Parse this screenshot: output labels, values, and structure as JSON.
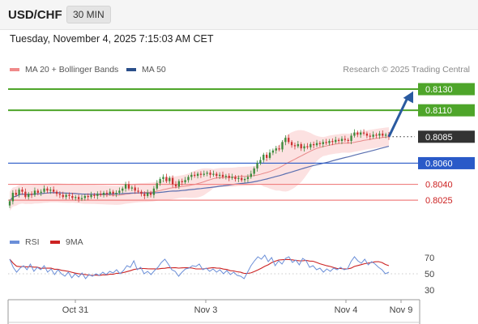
{
  "header": {
    "symbol": "USD/CHF",
    "timeframe": "30 MIN"
  },
  "datetime": "Tuesday, November 4, 2025 7:15:03 AM CET",
  "legend": {
    "ma20_label": "MA 20 + Bollinger Bands",
    "ma50_label": "MA 50",
    "credit": "Research © 2025 Trading Central"
  },
  "rsi_legend": {
    "rsi_label": "RSI",
    "ma_label": "9MA"
  },
  "colors": {
    "resistance": "#4ea52a",
    "support_blue": "#2a5ac8",
    "support_red": "#f08080",
    "label_red_text": "#cc2222",
    "current_box": "#333333",
    "candle_up": "#3c8a3c",
    "candle_down": "#cc3333",
    "ma50": "#5a6fb0",
    "ma20": "#e88a8a",
    "bb_fill": "#fbdcdc",
    "arrow": "#2a5aa0",
    "rsi_line": "#6b8fd8",
    "rsi_ma": "#cc2222"
  },
  "chart_data": [
    {
      "type": "candlestick",
      "ylim": [
        0.7996,
        0.814
      ],
      "levels": [
        {
          "value": 0.813,
          "label": "0.8130",
          "kind": "resistance",
          "style": "green-box"
        },
        {
          "value": 0.811,
          "label": "0.8110",
          "kind": "resistance",
          "style": "green-box"
        },
        {
          "value": 0.8085,
          "label": "0.8085",
          "kind": "current",
          "style": "dark-box"
        },
        {
          "value": 0.806,
          "label": "0.8060",
          "kind": "support",
          "style": "blue-box"
        },
        {
          "value": 0.804,
          "label": "0.8040",
          "kind": "support",
          "style": "red-text"
        },
        {
          "value": 0.8025,
          "label": "0.8025",
          "kind": "support",
          "style": "red-text"
        }
      ],
      "x_ticks": [
        "Oct 31",
        "Nov 3",
        "Nov 4",
        "Nov 9"
      ],
      "close": [
        0.8024,
        0.8032,
        0.803,
        0.8035,
        0.8033,
        0.8028,
        0.8031,
        0.803,
        0.8034,
        0.8032,
        0.8033,
        0.8036,
        0.8034,
        0.8035,
        0.8033,
        0.8031,
        0.803,
        0.8028,
        0.803,
        0.8029,
        0.8027,
        0.8028,
        0.8026,
        0.8027,
        0.8029,
        0.8028,
        0.803,
        0.8029,
        0.8031,
        0.803,
        0.8032,
        0.8031,
        0.8033,
        0.8031,
        0.8032,
        0.8034,
        0.8036,
        0.804,
        0.8036,
        0.8037,
        0.8034,
        0.8033,
        0.8031,
        0.8029,
        0.8032,
        0.803,
        0.8036,
        0.8041,
        0.8045,
        0.8047,
        0.8043,
        0.8046,
        0.804,
        0.8038,
        0.8043,
        0.8042,
        0.8044,
        0.8047,
        0.8049,
        0.8048,
        0.805,
        0.8049,
        0.805,
        0.8051,
        0.8049,
        0.805,
        0.8048,
        0.8049,
        0.8047,
        0.8048,
        0.8046,
        0.8047,
        0.8045,
        0.8046,
        0.8044,
        0.8045,
        0.8047,
        0.805,
        0.8055,
        0.806,
        0.8063,
        0.8068,
        0.8065,
        0.807,
        0.8072,
        0.8074,
        0.8073,
        0.808,
        0.8084,
        0.808,
        0.8077,
        0.8076,
        0.8078,
        0.8074,
        0.8076,
        0.8075,
        0.8078,
        0.8077,
        0.8079,
        0.8078,
        0.808,
        0.8079,
        0.8081,
        0.808,
        0.8082,
        0.8081,
        0.8083,
        0.8082,
        0.8081,
        0.8086,
        0.8089,
        0.8087,
        0.8089,
        0.8088,
        0.8086,
        0.8085,
        0.8087,
        0.8086,
        0.8088,
        0.8086,
        0.8087,
        0.8085
      ],
      "ma50_end": 0.8076,
      "forecast_arrow": {
        "from": 0.8085,
        "to": 0.8128
      }
    },
    {
      "type": "line",
      "indicator": "RSI",
      "ylim": [
        20,
        80
      ],
      "y_ticks": [
        70,
        50,
        30
      ],
      "reference_line": 50,
      "rsi": [
        68,
        58,
        52,
        57,
        60,
        55,
        62,
        53,
        58,
        55,
        60,
        52,
        56,
        49,
        55,
        50,
        47,
        52,
        45,
        50,
        46,
        51,
        44,
        49,
        47,
        50,
        48,
        52,
        49,
        53,
        51,
        55,
        50,
        54,
        60,
        58,
        66,
        55,
        58,
        50,
        53,
        49,
        54,
        58,
        64,
        68,
        62,
        55,
        53,
        47,
        52,
        56,
        57,
        60,
        59,
        62,
        55,
        57,
        53,
        56,
        52,
        55,
        50,
        54,
        49,
        52,
        48,
        47,
        44,
        52,
        60,
        66,
        71,
        68,
        73,
        65,
        70,
        60,
        66,
        62,
        69,
        71,
        64,
        67,
        61,
        69,
        66,
        58,
        60,
        55,
        57,
        52,
        56,
        53,
        57,
        55,
        58,
        55,
        56,
        65,
        71,
        66,
        63,
        68,
        61,
        65,
        62,
        58,
        55,
        50,
        52
      ],
      "ma9_end": 60
    }
  ]
}
